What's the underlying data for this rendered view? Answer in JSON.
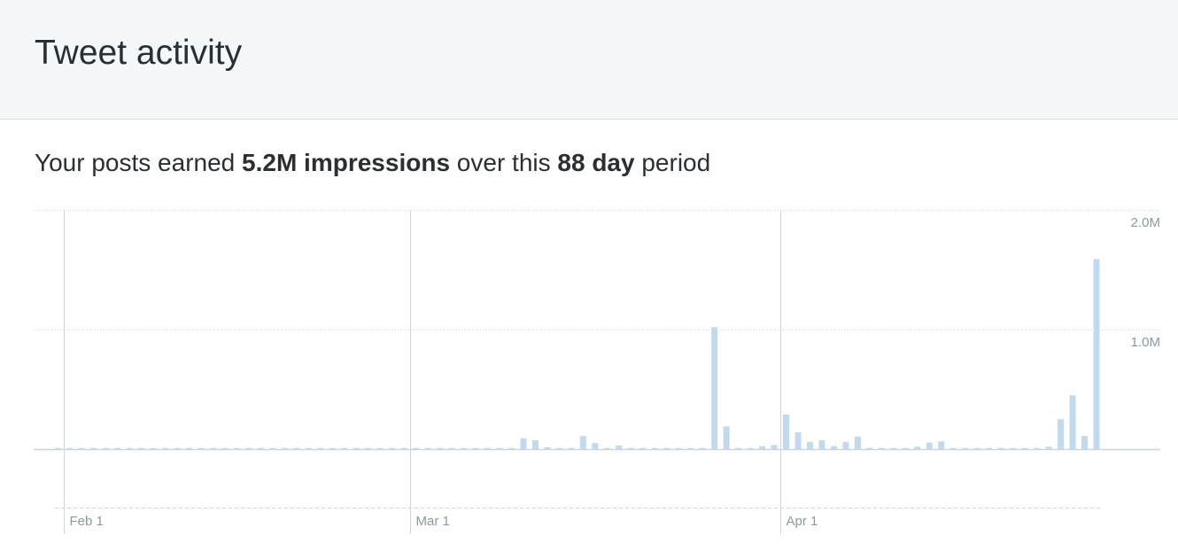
{
  "header": {
    "title": "Tweet activity"
  },
  "summary": [
    "Your posts earned",
    "5.2M impressions",
    "over this",
    "88 day",
    "period"
  ],
  "chart_data": {
    "type": "bar",
    "color": "#c1daef",
    "grid": true,
    "categories": [
      null,
      "Feb 1",
      null,
      null,
      null,
      null,
      null,
      null,
      null,
      null,
      null,
      null,
      null,
      null,
      null,
      null,
      null,
      null,
      null,
      null,
      null,
      null,
      null,
      null,
      null,
      null,
      null,
      null,
      null,
      null,
      "Mar 1",
      null,
      null,
      null,
      null,
      null,
      null,
      null,
      null,
      null,
      null,
      null,
      null,
      null,
      null,
      null,
      null,
      null,
      null,
      null,
      null,
      null,
      null,
      null,
      null,
      null,
      null,
      null,
      null,
      null,
      null,
      "Apr 1",
      null,
      null,
      null,
      null,
      null,
      null,
      null,
      null,
      null,
      null,
      null,
      null,
      null,
      null,
      null,
      null,
      null,
      null,
      null,
      null,
      null,
      null,
      null,
      null,
      null,
      null
    ],
    "values": [
      10000,
      10000,
      10000,
      10000,
      10000,
      10000,
      10000,
      10000,
      10000,
      10000,
      10000,
      10000,
      10000,
      10000,
      10000,
      10000,
      10000,
      10000,
      10000,
      10000,
      10000,
      10000,
      10000,
      10000,
      10000,
      10000,
      10000,
      10000,
      10000,
      10000,
      10000,
      10000,
      10000,
      10000,
      10000,
      10000,
      10000,
      10000,
      10000,
      90000,
      75000,
      15000,
      10000,
      10000,
      110000,
      50000,
      10000,
      30000,
      10000,
      10000,
      10000,
      10000,
      10000,
      10000,
      10000,
      1020000,
      190000,
      10000,
      10000,
      25000,
      35000,
      290000,
      140000,
      60000,
      75000,
      25000,
      60000,
      105000,
      10000,
      10000,
      10000,
      10000,
      20000,
      55000,
      65000,
      10000,
      10000,
      10000,
      10000,
      10000,
      10000,
      10000,
      10000,
      20000,
      250000,
      450000,
      110000,
      1590000
    ],
    "ylim": [
      0,
      2000000
    ],
    "yticks": [
      {
        "value": 1000000,
        "label": "1.0M"
      },
      {
        "value": 2000000,
        "label": "2.0M"
      }
    ]
  }
}
